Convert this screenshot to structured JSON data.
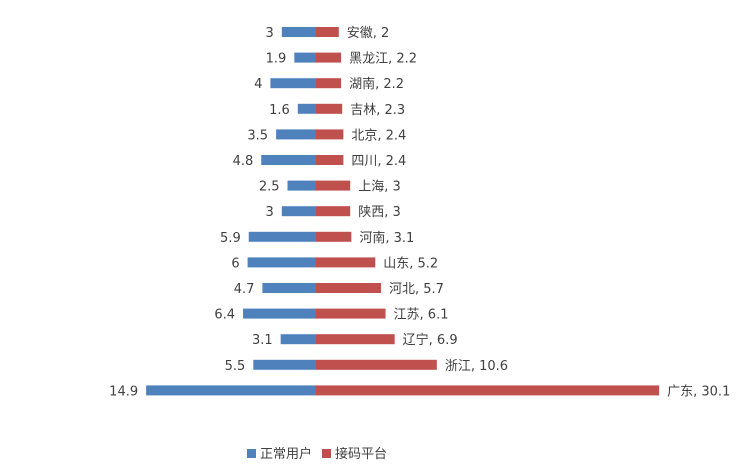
{
  "chart_data": {
    "type": "bar",
    "orientation": "horizontal-diverging",
    "categories": [
      "安徽",
      "黑龙江",
      "湖南",
      "吉林",
      "北京",
      "四川",
      "上海",
      "陕西",
      "河南",
      "山东",
      "河北",
      "江苏",
      "辽宁",
      "浙江",
      "广东"
    ],
    "series": [
      {
        "name": "正常用户",
        "color": "#4F81BD",
        "values": [
          3,
          1.9,
          4,
          1.6,
          3.5,
          4.8,
          2.5,
          3,
          5.9,
          6,
          4.7,
          6.4,
          3.1,
          5.5,
          14.9
        ],
        "value_labels": [
          "3",
          "1.9",
          "4",
          "1.6",
          "3.5",
          "4.8",
          "2.5",
          "3",
          "5.9",
          "6",
          "4.7",
          "6.4",
          "3.1",
          "5.5",
          "14.9"
        ]
      },
      {
        "name": "接码平台",
        "color": "#C0504D",
        "values": [
          2,
          2.2,
          2.2,
          2.3,
          2.4,
          2.4,
          3,
          3,
          3.1,
          5.2,
          5.7,
          6.1,
          6.9,
          10.6,
          30.1
        ],
        "value_labels": [
          "安徽, 2",
          "黑龙江, 2.2",
          "湖南, 2.2",
          "吉林, 2.3",
          "北京, 2.4",
          "四川, 2.4",
          "上海, 3",
          "陕西, 3",
          "河南, 3.1",
          "山东, 5.2",
          "河北, 5.7",
          "江苏, 6.1",
          "辽宁, 6.9",
          "浙江, 10.6",
          "广东, 30.1"
        ]
      }
    ],
    "legend": {
      "position": "bottom-center",
      "items": [
        "正常用户",
        "接码平台"
      ]
    },
    "title": "",
    "xlabel": "",
    "ylabel": "",
    "grid": false
  }
}
